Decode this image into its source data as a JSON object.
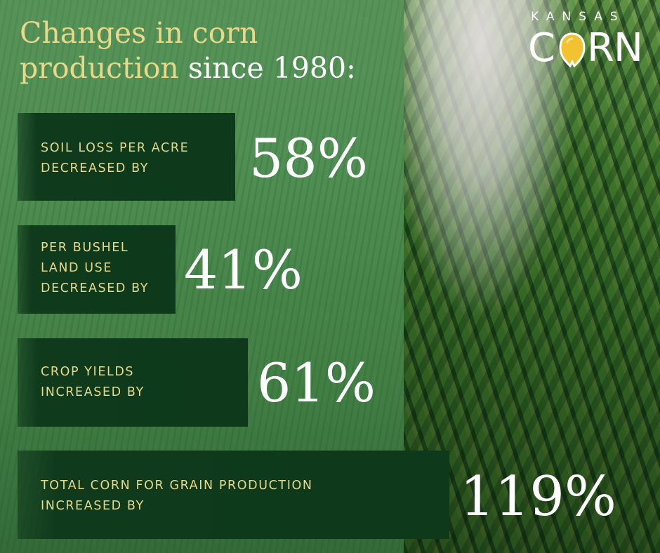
{
  "title": {
    "part1": "Changes in corn production",
    "part2": "since 1980:"
  },
  "logo": {
    "top": "KANSAS",
    "word_c": "C",
    "word_r": "R",
    "word_n": "N",
    "colors": {
      "kernel": "#f2c230",
      "text": "#ffffff"
    }
  },
  "stats": [
    {
      "label": "SOIL LOSS PER ACRE\nDECREASED BY",
      "value": "58%"
    },
    {
      "label": "PER BUSHEL\nLAND USE\nDECREASED BY",
      "value": "41%"
    },
    {
      "label": "CROP YIELDS\nINCREASED BY",
      "value": "61%"
    },
    {
      "label": "TOTAL CORN FOR GRAIN PRODUCTION\nINCREASED BY",
      "value": "119%"
    }
  ],
  "colors": {
    "title_accent": "#e7d88a",
    "box_background": "#0e3a1b",
    "value_text": "#ffffff",
    "left_panel": "#4c8a52"
  }
}
